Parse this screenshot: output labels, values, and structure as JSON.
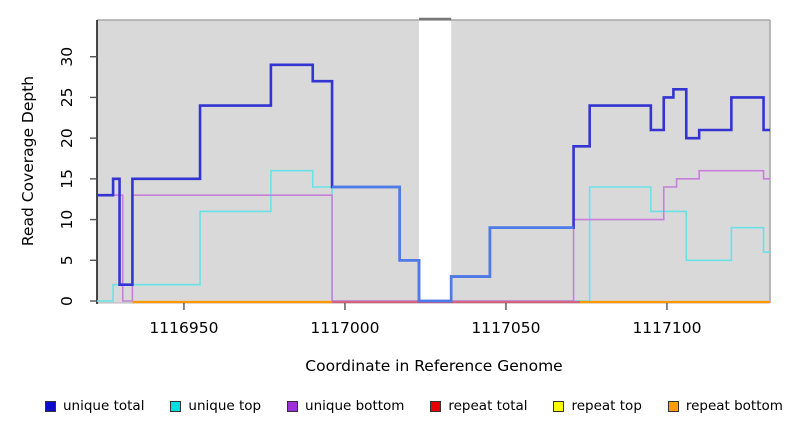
{
  "chart_data": {
    "type": "line",
    "subtype": "step-coverage",
    "title": "",
    "xlabel": "Coordinate in Reference Genome",
    "ylabel": "Read Coverage Depth",
    "x_ticks": [
      1116950,
      1117000,
      1117050,
      1117100
    ],
    "y_ticks": [
      0,
      5,
      10,
      15,
      20,
      25,
      30
    ],
    "xlim": [
      1116923,
      1117132
    ],
    "ylim": [
      0,
      34
    ],
    "grid": "off",
    "plot_background": "#d9d9d9",
    "gap_region": {
      "start": 1117023,
      "end": 1117033,
      "color": "#ffffff"
    },
    "series": [
      {
        "name": "unique total",
        "color": "#3434d2",
        "light_color": "#4d7ce8",
        "light_range": [
          1116996,
          1117071
        ],
        "width": 2.6,
        "steps": [
          [
            1116923,
            13
          ],
          [
            1116928,
            15
          ],
          [
            1116930,
            2
          ],
          [
            1116934,
            15
          ],
          [
            1116955,
            24
          ],
          [
            1116977,
            29
          ],
          [
            1116990,
            27
          ],
          [
            1116996,
            14
          ],
          [
            1117017,
            5
          ],
          [
            1117023,
            0
          ],
          [
            1117033,
            3
          ],
          [
            1117045,
            9
          ],
          [
            1117071,
            19
          ],
          [
            1117076,
            24
          ],
          [
            1117095,
            21
          ],
          [
            1117099,
            25
          ],
          [
            1117102,
            26
          ],
          [
            1117106,
            20
          ],
          [
            1117110,
            21
          ],
          [
            1117120,
            25
          ],
          [
            1117130,
            21
          ]
        ],
        "x_end": 1117132
      },
      {
        "name": "unique top",
        "color": "#68e2e6",
        "width": 1.6,
        "steps": [
          [
            1116923,
            0
          ],
          [
            1116928,
            2
          ],
          [
            1116955,
            11
          ],
          [
            1116977,
            16
          ],
          [
            1116990,
            14
          ],
          [
            1116996,
            0
          ],
          [
            1117076,
            14
          ],
          [
            1117095,
            11
          ],
          [
            1117106,
            5
          ],
          [
            1117120,
            9
          ],
          [
            1117130,
            6
          ]
        ],
        "x_end": 1117132
      },
      {
        "name": "unique bottom",
        "color": "#c77fdb",
        "width": 1.6,
        "steps": [
          [
            1116923,
            13
          ],
          [
            1116931,
            0
          ],
          [
            1116934,
            13
          ],
          [
            1116996,
            0
          ],
          [
            1117071,
            10
          ],
          [
            1117099,
            14
          ],
          [
            1117103,
            15
          ],
          [
            1117110,
            16
          ],
          [
            1117130,
            15
          ]
        ],
        "x_end": 1117132
      },
      {
        "name": "repeat total",
        "color": "#d4627f",
        "width": 1.6,
        "steps": [
          [
            1116923,
            0
          ]
        ],
        "x_end": 1117132
      },
      {
        "name": "repeat top",
        "color": "#f2e640",
        "width": 1.6,
        "steps": [
          [
            1116923,
            0
          ]
        ],
        "x_end": 1117132
      },
      {
        "name": "repeat bottom",
        "color": "#ff9800",
        "width": 2.2,
        "steps": [
          [
            1116923,
            0
          ]
        ],
        "x_end": 1117132
      }
    ],
    "baseline_overlays": [
      {
        "range": [
          1116934,
          1116996
        ],
        "color": "#ff9800"
      },
      {
        "range": [
          1116996,
          1117073
        ],
        "color": "#d4627f"
      },
      {
        "range": [
          1117073,
          1117132
        ],
        "color": "#ff9800"
      }
    ],
    "legend": [
      {
        "label": "unique total",
        "color": "#0d0dcc"
      },
      {
        "label": "unique top",
        "color": "#00e0e0"
      },
      {
        "label": "unique bottom",
        "color": "#9b30d9"
      },
      {
        "label": "repeat total",
        "color": "#e80000"
      },
      {
        "label": "repeat top",
        "color": "#ffff00"
      },
      {
        "label": "repeat bottom",
        "color": "#ff9d00"
      }
    ],
    "frame_colors": {
      "top_border": "#a8a8a8",
      "gap_top_border": "#787878",
      "right_border": "#a8a8a8",
      "left_axis": "#1a1a1a",
      "bottom_edge": "#b5b5b5",
      "tick": "#555555"
    }
  }
}
